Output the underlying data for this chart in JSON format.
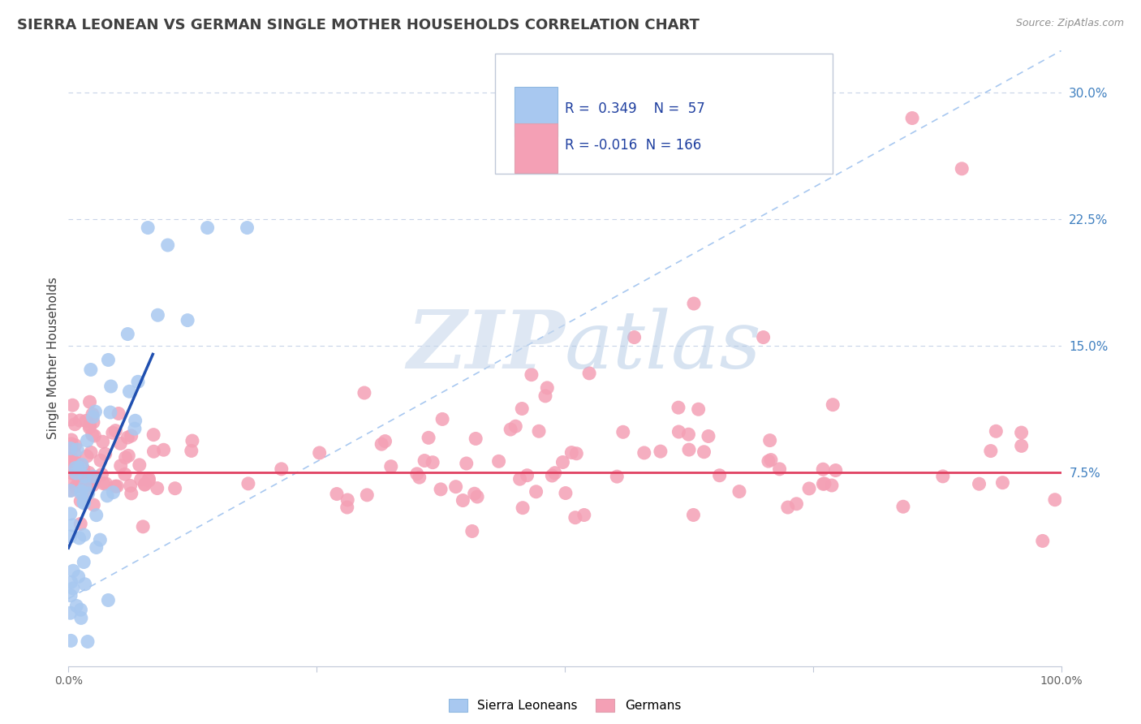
{
  "title": "SIERRA LEONEAN VS GERMAN SINGLE MOTHER HOUSEHOLDS CORRELATION CHART",
  "source": "Source: ZipAtlas.com",
  "ylabel": "Single Mother Households",
  "ytick_labels": [
    "7.5%",
    "15.0%",
    "22.5%",
    "30.0%"
  ],
  "ytick_values": [
    0.075,
    0.15,
    0.225,
    0.3
  ],
  "xlim": [
    0.0,
    1.0
  ],
  "ylim": [
    -0.04,
    0.325
  ],
  "legend1_label": "Sierra Leoneans",
  "legend2_label": "Germans",
  "r1": 0.349,
  "n1": 57,
  "r2": -0.016,
  "n2": 166,
  "blue_color": "#A8C8F0",
  "pink_color": "#F4A0B5",
  "blue_line_color": "#2050B0",
  "pink_line_color": "#E04060",
  "dashed_line_color": "#A8C8F0",
  "background_color": "#FFFFFF",
  "grid_color": "#C8D4E8",
  "title_color": "#404040",
  "source_color": "#909090",
  "watermark_zip": "ZIP",
  "watermark_atlas": "atlas",
  "title_fontsize": 13,
  "axis_fontsize": 10,
  "legend_fontsize": 12
}
